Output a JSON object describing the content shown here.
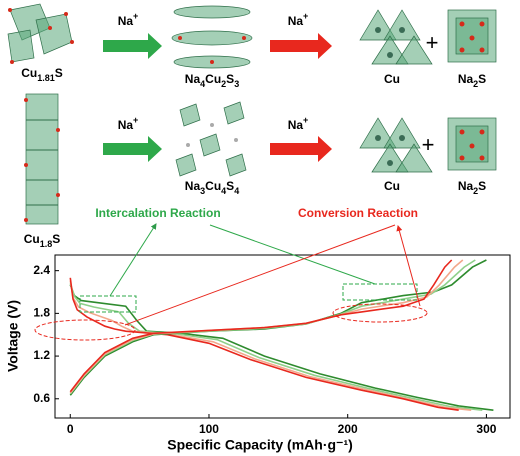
{
  "scheme": {
    "row1": {
      "reactant": [
        "Cu",
        "1.81",
        "S"
      ],
      "ion1": [
        "Na",
        "+"
      ],
      "intermediate": [
        "Na",
        "4",
        "Cu",
        "2",
        "S",
        "3"
      ],
      "ion2": [
        "Na",
        "+"
      ],
      "product1": [
        "Cu"
      ],
      "plus": "+",
      "product2": [
        "Na",
        "2",
        "S"
      ]
    },
    "row2": {
      "reactant": [
        "Cu",
        "1.8",
        "S"
      ],
      "ion1": [
        "Na",
        "+"
      ],
      "intermediate": [
        "Na",
        "3",
        "Cu",
        "4",
        "S",
        "4"
      ],
      "ion2": [
        "Na",
        "+"
      ],
      "product1": [
        "Cu"
      ],
      "plus": "+",
      "product2": [
        "Na",
        "2",
        "S"
      ]
    },
    "intercalation": "Intercalation Reaction",
    "conversion": "Conversion Reaction"
  },
  "chart_data": {
    "type": "line",
    "x_label": "Specific Capacity (mAh·g⁻¹)",
    "y_label": "Voltage (V)",
    "xlim": [
      -11,
      317
    ],
    "ylim": [
      0.33,
      2.62
    ],
    "xticks": [
      0,
      100,
      200,
      300
    ],
    "yticks": [
      0.6,
      1.2,
      1.8,
      2.4
    ],
    "series": [
      {
        "color": "#2e8b2e",
        "x": [
          0,
          3,
          8,
          20,
          40,
          48,
          55,
          80,
          110,
          140,
          180,
          220,
          250,
          280,
          305
        ],
        "values": [
          2.2,
          2.05,
          1.98,
          1.95,
          1.9,
          1.7,
          1.55,
          1.52,
          1.45,
          1.2,
          0.95,
          0.75,
          0.62,
          0.5,
          0.44
        ]
      },
      {
        "color": "#8fd08a",
        "x": [
          0,
          3,
          7,
          17,
          35,
          42,
          50,
          77,
          106,
          136,
          176,
          216,
          246,
          274,
          297
        ],
        "values": [
          2.22,
          2.04,
          1.94,
          1.89,
          1.82,
          1.66,
          1.55,
          1.51,
          1.43,
          1.18,
          0.93,
          0.74,
          0.61,
          0.49,
          0.44
        ]
      },
      {
        "color": "#f2a88c",
        "x": [
          0,
          2,
          6,
          14,
          30,
          37,
          45,
          73,
          103,
          133,
          173,
          213,
          243,
          270,
          289
        ],
        "values": [
          2.26,
          2.02,
          1.89,
          1.81,
          1.7,
          1.62,
          1.55,
          1.5,
          1.4,
          1.16,
          0.91,
          0.73,
          0.6,
          0.48,
          0.44
        ]
      },
      {
        "color": "#e8281e",
        "x": [
          0,
          2,
          5,
          12,
          25,
          32,
          40,
          70,
          100,
          130,
          170,
          210,
          240,
          265,
          280
        ],
        "values": [
          2.3,
          2.0,
          1.85,
          1.75,
          1.62,
          1.58,
          1.55,
          1.5,
          1.38,
          1.15,
          0.9,
          0.72,
          0.6,
          0.48,
          0.44
        ]
      },
      {
        "color": "#2e8b2e",
        "x": [
          0,
          10,
          25,
          45,
          60,
          100,
          140,
          170,
          195,
          210,
          240,
          262,
          275,
          290,
          300
        ],
        "values": [
          0.65,
          0.9,
          1.2,
          1.4,
          1.5,
          1.55,
          1.58,
          1.65,
          1.8,
          1.95,
          2.05,
          2.1,
          2.2,
          2.45,
          2.55
        ]
      },
      {
        "color": "#8fd08a",
        "x": [
          0,
          10,
          25,
          45,
          60,
          100,
          140,
          170,
          195,
          210,
          240,
          260,
          270,
          284,
          292
        ],
        "values": [
          0.67,
          0.92,
          1.22,
          1.42,
          1.51,
          1.55,
          1.59,
          1.65,
          1.79,
          1.9,
          2.0,
          2.07,
          2.2,
          2.45,
          2.55
        ]
      },
      {
        "color": "#f2a88c",
        "x": [
          0,
          10,
          25,
          45,
          60,
          100,
          140,
          170,
          195,
          210,
          240,
          257,
          266,
          277,
          283
        ],
        "values": [
          0.68,
          0.93,
          1.23,
          1.43,
          1.51,
          1.56,
          1.6,
          1.66,
          1.78,
          1.86,
          1.95,
          2.03,
          2.2,
          2.45,
          2.55
        ]
      },
      {
        "color": "#e8281e",
        "x": [
          0,
          10,
          25,
          45,
          60,
          100,
          140,
          170,
          195,
          210,
          240,
          255,
          262,
          270,
          275
        ],
        "values": [
          0.7,
          0.95,
          1.25,
          1.45,
          1.52,
          1.56,
          1.6,
          1.66,
          1.78,
          1.82,
          1.9,
          2.0,
          2.2,
          2.45,
          2.55
        ]
      }
    ]
  }
}
